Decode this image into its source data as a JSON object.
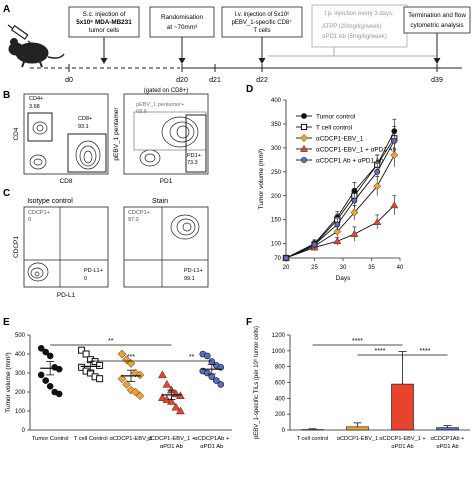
{
  "panels": {
    "A": "A",
    "B": "B",
    "C": "C",
    "D": "D",
    "E": "E",
    "F": "F"
  },
  "timeline": {
    "boxes": {
      "injection": [
        "S.c. injection of",
        "5x10⁶ MDA-MB231",
        "tumor cells"
      ],
      "randomisation": [
        "Randomisation",
        "at ~70mm³"
      ],
      "iv": [
        "I.v. injection of 5x10⁶",
        "pEBV_1-specific CD8⁺",
        "T cells"
      ],
      "ip_title": "I.p. injection every 3 days:",
      "ip_items": [
        "ATPP (20mg/kg/week)",
        "αPD1 Ab (5mg/kg/week)"
      ],
      "termination": [
        "Termination and flow",
        "cytometric analysis"
      ]
    },
    "days": [
      "d0",
      "d20",
      "d21",
      "d22",
      "d39"
    ]
  },
  "panel_b": {
    "left": {
      "gate_cd4": "CD4+",
      "val_cd4": "3.68",
      "gate_cd8": "CD8+",
      "val_cd8": "93.1",
      "xlabel": "CD8",
      "ylabel": "CD4"
    },
    "right": {
      "gated_on": "(gated on CD8+)",
      "gate_pent": "pEBV_1 pentamer+",
      "val_pent": "68.6",
      "gate_pd1": "PD1+",
      "val_pd1": "73.3",
      "xlabel": "PD1",
      "ylabel": "pEBV_1 pentamer"
    }
  },
  "panel_c": {
    "left": {
      "title": "Isotype control",
      "q_cdcp1": "CDCP1+",
      "v_cdcp1": "0",
      "q_pdl1": "PD-L1+",
      "v_pdl1": "0"
    },
    "right": {
      "title": "Stain",
      "q_cdcp1": "CDCP1+",
      "v_cdcp1": "97.0",
      "q_pdl1": "PD-L1+",
      "v_pdl1": "99.1"
    },
    "xlabel": "PD-L1",
    "ylabel": "CDCP1"
  },
  "chart_data": [
    {
      "panel": "D",
      "type": "line",
      "xlabel": "Days",
      "ylabel": "Tumor volume (mm³)",
      "xlim": [
        20,
        40
      ],
      "ylim": [
        70,
        400
      ],
      "xticks": [
        20,
        25,
        30,
        35,
        40
      ],
      "yticks": [
        70,
        100,
        150,
        200,
        250,
        300,
        350,
        400
      ],
      "x": [
        20,
        25,
        29,
        32,
        36,
        39
      ],
      "series": [
        {
          "name": "Tumor control",
          "color": "#111111",
          "marker": "circle",
          "values": [
            70,
            100,
            155,
            210,
            265,
            335
          ],
          "err": [
            3,
            8,
            12,
            18,
            20,
            25
          ]
        },
        {
          "name": "T cell control",
          "color": "#111111",
          "marker": "square-open",
          "values": [
            70,
            98,
            150,
            200,
            265,
            320
          ],
          "err": [
            3,
            8,
            12,
            15,
            20,
            25
          ]
        },
        {
          "name": "αCDCP1-EBV_1",
          "color": "#f0a030",
          "marker": "diamond",
          "values": [
            70,
            95,
            125,
            165,
            220,
            285
          ],
          "err": [
            3,
            6,
            10,
            15,
            20,
            25
          ]
        },
        {
          "name": "αCDCP1-EBV_1 + αPD1 Ab",
          "color": "#e8432d",
          "marker": "triangle",
          "values": [
            70,
            92,
            105,
            120,
            145,
            180
          ],
          "err": [
            3,
            6,
            8,
            15,
            15,
            20
          ]
        },
        {
          "name": "αCDCP1 Ab + αPD1 Ab",
          "color": "#5b6fc9",
          "marker": "circle",
          "values": [
            70,
            98,
            140,
            190,
            250,
            315
          ],
          "err": [
            3,
            8,
            12,
            15,
            18,
            20
          ]
        }
      ]
    },
    {
      "panel": "E",
      "type": "scatter",
      "ylabel": "Tumor volume (mm³)",
      "ylim": [
        0,
        500
      ],
      "yticks": [
        0,
        100,
        200,
        300,
        400,
        500
      ],
      "categories": [
        "Tumor Control",
        "T cell Control",
        "αCDCP1-EBV_1",
        "αCDCP1-EBV_1 + αPD1 Ab",
        "αCDCP1Ab + αPD1 Ab"
      ],
      "colors": [
        "#111111",
        "#111111",
        "#f0a030",
        "#e8432d",
        "#5b6fc9"
      ],
      "markers": [
        "circle",
        "square-open",
        "diamond",
        "triangle",
        "circle"
      ],
      "means": [
        325,
        335,
        285,
        185,
        320
      ],
      "sems": [
        35,
        25,
        30,
        25,
        25
      ],
      "points": [
        [
          430,
          410,
          390,
          330,
          320,
          290,
          260,
          230,
          200,
          190
        ],
        [
          420,
          400,
          370,
          360,
          340,
          330,
          310,
          300,
          280,
          270
        ],
        [
          400,
          370,
          350,
          300,
          290,
          270,
          240,
          210,
          200,
          180
        ],
        [
          290,
          240,
          210,
          190,
          180,
          170,
          160,
          150,
          120,
          100
        ],
        [
          400,
          390,
          360,
          340,
          330,
          310,
          300,
          280,
          260,
          240
        ]
      ],
      "significance": [
        {
          "from": 0,
          "to": 3,
          "label": "**"
        },
        {
          "from": 1,
          "to": 3,
          "label": "***"
        },
        {
          "from": 3,
          "to": 4,
          "label": "**"
        }
      ]
    },
    {
      "panel": "F",
      "type": "bar",
      "ylabel": "pEBV_1-specific TILs (per 10⁶ tumor cells)",
      "ylim": [
        0,
        1200
      ],
      "yticks": [
        0,
        200,
        400,
        600,
        800,
        1000,
        1200
      ],
      "categories": [
        "T cell control",
        "αCDCP1-EBV_1",
        "αCDCP1-EBV_1 + αPD1 Ab",
        "αCDCP1Ab + αPD1 Ab"
      ],
      "colors": [
        "#111111",
        "#f0a030",
        "#e8432d",
        "#5b6fc9"
      ],
      "values": [
        5,
        40,
        580,
        30
      ],
      "err": [
        10,
        50,
        410,
        25
      ],
      "significance": [
        {
          "from": 0,
          "to": 2,
          "label": "****"
        },
        {
          "from": 1,
          "to": 2,
          "label": "****"
        },
        {
          "from": 2,
          "to": 3,
          "label": "****"
        }
      ]
    }
  ]
}
